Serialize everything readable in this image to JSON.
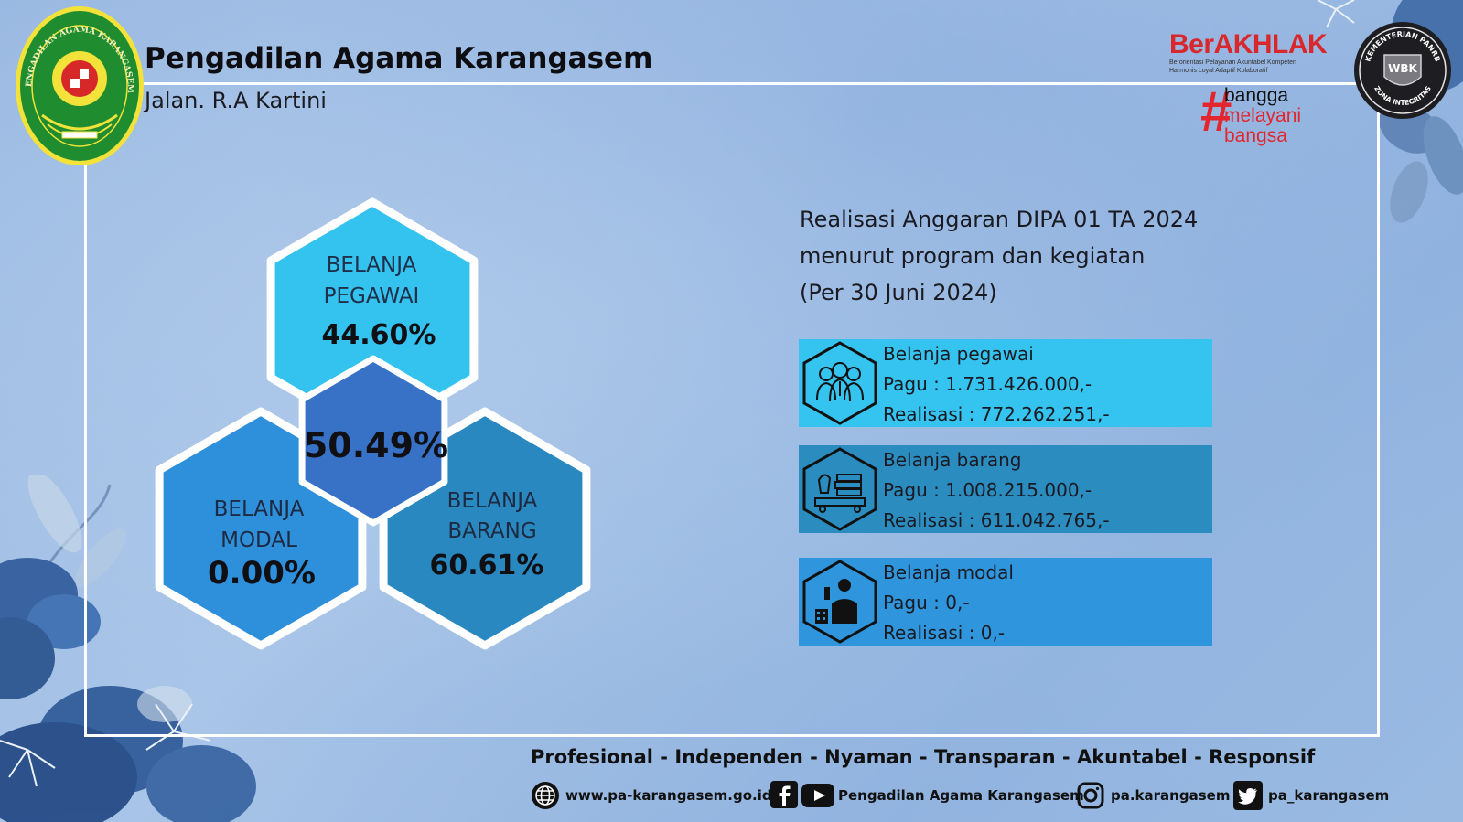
{
  "header": {
    "title": "Pengadilan Agama Karangasem",
    "address": "Jalan. R.A Kartini",
    "logo_text": "PENGADILAN AGAMA KARANGASEM"
  },
  "badges": {
    "berakhlak": "BerAKHLAK",
    "berakhlak_line1": "Berorientasi Pelayanan Akuntabel Kompeten",
    "berakhlak_line2": "Harmonis Loyal Adaptif Kolaboratif",
    "bangga_hash": "#",
    "bangga_1": "bangga",
    "bangga_2": "melayani",
    "bangga_3": "bangsa",
    "wbk_ring_top": "KEMENTERIAN PANRB",
    "wbk_ring_bottom": "ZONA INTEGRITAS",
    "wbk_center": "WBK"
  },
  "hexagons": {
    "pegawai": {
      "line1": "BELANJA",
      "line2": "PEGAWAI",
      "percent": "44.60%",
      "color": "#33c3ee"
    },
    "modal": {
      "line1": "BELANJA",
      "line2": "MODAL",
      "percent": "0.00%",
      "color": "#2e90da"
    },
    "barang": {
      "line1": "BELANJA",
      "line2": "BARANG",
      "percent": "60.61%",
      "color": "#2a88c0"
    },
    "total": {
      "percent": "50.49%",
      "color": "#3872c6"
    }
  },
  "report": {
    "title_line1": "Realisasi Anggaran DIPA 01 TA 2024",
    "title_line2": "menurut program dan kegiatan",
    "title_line3": "(Per 30 Juni 2024)"
  },
  "cards": [
    {
      "title": "Belanja pegawai",
      "pagu": "Pagu : 1.731.426.000,-",
      "realisasi": "Realisasi : 772.262.251,-",
      "color": "#34c4ef",
      "icon": "people-icon"
    },
    {
      "title": "Belanja barang",
      "pagu": "Pagu : 1.008.215.000,-",
      "realisasi": "Realisasi : 611.042.765,-",
      "color": "#2b8dbf",
      "icon": "goods-icon"
    },
    {
      "title": "Belanja modal",
      "pagu": "Pagu : 0,-",
      "realisasi": "Realisasi : 0,-",
      "color": "#2f95dd",
      "icon": "worker-icon"
    }
  ],
  "footer": {
    "tagline": "Profesional - Independen - Nyaman - Transparan - Akuntabel - Responsif",
    "website": "www.pa-karangasem.go.id",
    "social_name": "Pengadilan Agama Karangasem",
    "instagram": "pa.karangasem",
    "twitter": "pa_karangasem"
  }
}
